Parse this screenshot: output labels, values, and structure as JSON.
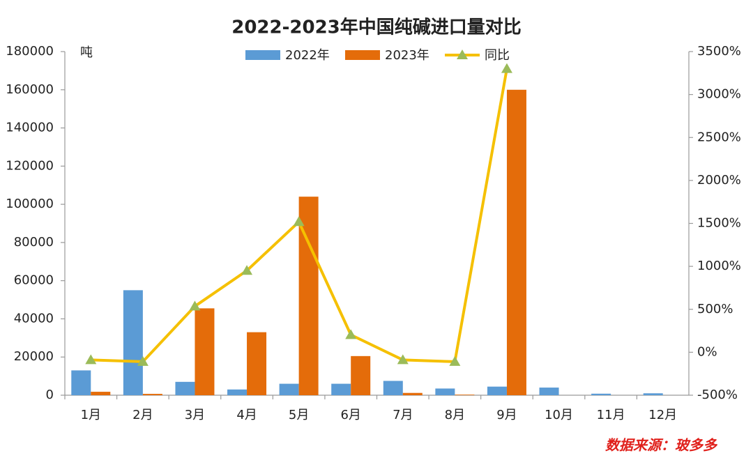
{
  "chart_data": {
    "type": "bar",
    "title": "2022-2023年中国纯碱进口量对比",
    "y_unit": "吨",
    "source": "数据来源：玻多多",
    "categories": [
      "1月",
      "2月",
      "3月",
      "4月",
      "5月",
      "6月",
      "7月",
      "8月",
      "9月",
      "10月",
      "11月",
      "12月"
    ],
    "series": [
      {
        "name": "2022年",
        "color": "#5b9bd5",
        "type": "bar",
        "values": [
          13000,
          55000,
          7000,
          3000,
          6000,
          6000,
          7500,
          3500,
          4500,
          4000,
          800,
          1000
        ]
      },
      {
        "name": "2023年",
        "color": "#e46c0a",
        "type": "bar",
        "values": [
          1800,
          700,
          45500,
          33000,
          104000,
          20500,
          1200,
          300,
          160000,
          null,
          null,
          null
        ]
      },
      {
        "name": "同比",
        "color": "#f5c000",
        "marker_color": "#9bbb59",
        "type": "line",
        "axis": "y2",
        "values": [
          -89,
          -110,
          535,
          950,
          1518,
          203,
          -89,
          -110,
          3300,
          null,
          null,
          null
        ]
      }
    ],
    "ylim": [
      0,
      180000
    ],
    "yticks": [
      0,
      20000,
      40000,
      60000,
      80000,
      100000,
      120000,
      140000,
      160000,
      180000
    ],
    "y2lim": [
      -500,
      3500
    ],
    "y2ticks": [
      {
        "value": -500,
        "label": "-500%"
      },
      {
        "value": 0,
        "label": "0%"
      },
      {
        "value": 500,
        "label": "500%"
      },
      {
        "value": 1000,
        "label": "1000%"
      },
      {
        "value": 1500,
        "label": "1500%"
      },
      {
        "value": 2000,
        "label": "2000%"
      },
      {
        "value": 2500,
        "label": "2500%"
      },
      {
        "value": 3000,
        "label": "3000%"
      },
      {
        "value": 3500,
        "label": "3500%"
      }
    ],
    "grid": false
  }
}
